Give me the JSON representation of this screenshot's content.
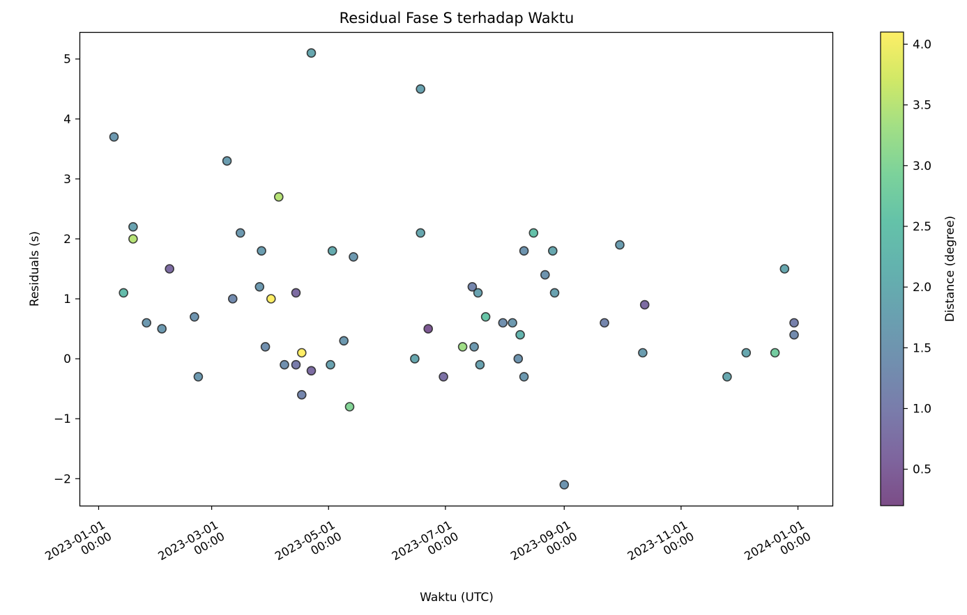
{
  "chart_data": {
    "type": "scatter",
    "title": "Residual Fase S terhadap Waktu",
    "xlabel": "Waktu (UTC)",
    "ylabel": "Residuals (s)",
    "colorbar_label": "Distance (degree)",
    "colormap": "viridis",
    "point_alpha": 0.7,
    "xlim": [
      "2022-12-22",
      "2024-01-19"
    ],
    "ylim": [
      -2.45,
      5.45
    ],
    "x_ticks": [
      {
        "date": "2023-01-01",
        "line1": "2023-01-01",
        "line2": "00:00"
      },
      {
        "date": "2023-03-01",
        "line1": "2023-03-01",
        "line2": "00:00"
      },
      {
        "date": "2023-05-01",
        "line1": "2023-05-01",
        "line2": "00:00"
      },
      {
        "date": "2023-07-01",
        "line1": "2023-07-01",
        "line2": "00:00"
      },
      {
        "date": "2023-09-01",
        "line1": "2023-09-01",
        "line2": "00:00"
      },
      {
        "date": "2023-11-01",
        "line1": "2023-11-01",
        "line2": "00:00"
      },
      {
        "date": "2024-01-01",
        "line1": "2024-01-01",
        "line2": "00:00"
      }
    ],
    "y_ticks": [
      {
        "value": -2,
        "label": "−2"
      },
      {
        "value": -1,
        "label": "−1"
      },
      {
        "value": 0,
        "label": "0"
      },
      {
        "value": 1,
        "label": "1"
      },
      {
        "value": 2,
        "label": "2"
      },
      {
        "value": 3,
        "label": "3"
      },
      {
        "value": 4,
        "label": "4"
      },
      {
        "value": 5,
        "label": "5"
      }
    ],
    "colorbar_range": [
      0.2,
      4.1
    ],
    "colorbar_ticks": [
      {
        "value": 0.5,
        "label": "0.5"
      },
      {
        "value": 1.0,
        "label": "1.0"
      },
      {
        "value": 1.5,
        "label": "1.5"
      },
      {
        "value": 2.0,
        "label": "2.0"
      },
      {
        "value": 2.5,
        "label": "2.5"
      },
      {
        "value": 3.0,
        "label": "3.0"
      },
      {
        "value": 3.5,
        "label": "3.5"
      },
      {
        "value": 4.0,
        "label": "4.0"
      }
    ],
    "grid": false,
    "points": [
      {
        "date": "2023-01-09",
        "y": 3.7,
        "dist": 1.6
      },
      {
        "date": "2023-01-14",
        "y": 1.1,
        "dist": 2.4
      },
      {
        "date": "2023-01-19",
        "y": 2.2,
        "dist": 1.8
      },
      {
        "date": "2023-01-19",
        "y": 2.0,
        "dist": 3.5
      },
      {
        "date": "2023-01-26",
        "y": 0.6,
        "dist": 1.6
      },
      {
        "date": "2023-02-03",
        "y": 0.5,
        "dist": 1.6
      },
      {
        "date": "2023-02-07",
        "y": 1.5,
        "dist": 0.7
      },
      {
        "date": "2023-02-20",
        "y": 0.7,
        "dist": 1.5
      },
      {
        "date": "2023-02-22",
        "y": -0.3,
        "dist": 1.6
      },
      {
        "date": "2023-03-09",
        "y": 3.3,
        "dist": 1.7
      },
      {
        "date": "2023-03-12",
        "y": 1.0,
        "dist": 1.3
      },
      {
        "date": "2023-03-16",
        "y": 2.1,
        "dist": 1.6
      },
      {
        "date": "2023-03-26",
        "y": 1.2,
        "dist": 1.6
      },
      {
        "date": "2023-03-27",
        "y": 1.8,
        "dist": 1.7
      },
      {
        "date": "2023-03-29",
        "y": 0.2,
        "dist": 1.4
      },
      {
        "date": "2023-04-01",
        "y": 1.0,
        "dist": 4.1
      },
      {
        "date": "2023-04-05",
        "y": 2.7,
        "dist": 3.5
      },
      {
        "date": "2023-04-08",
        "y": -0.1,
        "dist": 1.4
      },
      {
        "date": "2023-04-14",
        "y": 1.1,
        "dist": 0.7
      },
      {
        "date": "2023-04-14",
        "y": -0.1,
        "dist": 1.0
      },
      {
        "date": "2023-04-17",
        "y": -0.6,
        "dist": 1.2
      },
      {
        "date": "2023-04-17",
        "y": 0.1,
        "dist": 4.1
      },
      {
        "date": "2023-04-22",
        "y": 5.1,
        "dist": 1.9
      },
      {
        "date": "2023-04-22",
        "y": -0.2,
        "dist": 0.7
      },
      {
        "date": "2023-05-02",
        "y": -0.1,
        "dist": 1.8
      },
      {
        "date": "2023-05-03",
        "y": 1.8,
        "dist": 2.0
      },
      {
        "date": "2023-05-09",
        "y": 0.3,
        "dist": 1.6
      },
      {
        "date": "2023-05-12",
        "y": -0.8,
        "dist": 3.0
      },
      {
        "date": "2023-05-14",
        "y": 1.7,
        "dist": 1.6
      },
      {
        "date": "2023-06-15",
        "y": 0.0,
        "dist": 1.9
      },
      {
        "date": "2023-06-18",
        "y": 2.1,
        "dist": 1.9
      },
      {
        "date": "2023-06-18",
        "y": 4.5,
        "dist": 1.8
      },
      {
        "date": "2023-06-22",
        "y": 0.5,
        "dist": 0.4
      },
      {
        "date": "2023-06-30",
        "y": -0.3,
        "dist": 0.8
      },
      {
        "date": "2023-07-10",
        "y": 0.2,
        "dist": 3.3
      },
      {
        "date": "2023-07-15",
        "y": 1.2,
        "dist": 1.2
      },
      {
        "date": "2023-07-16",
        "y": 0.2,
        "dist": 1.6
      },
      {
        "date": "2023-07-18",
        "y": 1.1,
        "dist": 1.8
      },
      {
        "date": "2023-07-19",
        "y": -0.1,
        "dist": 1.8
      },
      {
        "date": "2023-07-22",
        "y": 0.7,
        "dist": 2.6
      },
      {
        "date": "2023-07-31",
        "y": 0.6,
        "dist": 1.4
      },
      {
        "date": "2023-08-05",
        "y": 0.6,
        "dist": 1.6
      },
      {
        "date": "2023-08-08",
        "y": 0.0,
        "dist": 1.5
      },
      {
        "date": "2023-08-09",
        "y": 0.4,
        "dist": 2.2
      },
      {
        "date": "2023-08-11",
        "y": -0.3,
        "dist": 1.6
      },
      {
        "date": "2023-08-11",
        "y": 1.8,
        "dist": 1.5
      },
      {
        "date": "2023-08-16",
        "y": 2.1,
        "dist": 2.5
      },
      {
        "date": "2023-08-22",
        "y": 1.4,
        "dist": 1.5
      },
      {
        "date": "2023-08-26",
        "y": 1.8,
        "dist": 1.9
      },
      {
        "date": "2023-08-27",
        "y": 1.1,
        "dist": 1.8
      },
      {
        "date": "2023-09-01",
        "y": -2.1,
        "dist": 1.5
      },
      {
        "date": "2023-09-22",
        "y": 0.6,
        "dist": 1.2
      },
      {
        "date": "2023-09-30",
        "y": 1.9,
        "dist": 1.7
      },
      {
        "date": "2023-10-12",
        "y": 0.1,
        "dist": 1.7
      },
      {
        "date": "2023-10-13",
        "y": 0.9,
        "dist": 0.7
      },
      {
        "date": "2023-11-25",
        "y": -0.3,
        "dist": 1.9
      },
      {
        "date": "2023-12-05",
        "y": 0.1,
        "dist": 1.9
      },
      {
        "date": "2023-12-20",
        "y": 0.1,
        "dist": 2.8
      },
      {
        "date": "2023-12-25",
        "y": 1.5,
        "dist": 1.9
      },
      {
        "date": "2023-12-30",
        "y": 0.4,
        "dist": 1.3
      },
      {
        "date": "2023-12-30",
        "y": 0.6,
        "dist": 1.1
      }
    ]
  }
}
